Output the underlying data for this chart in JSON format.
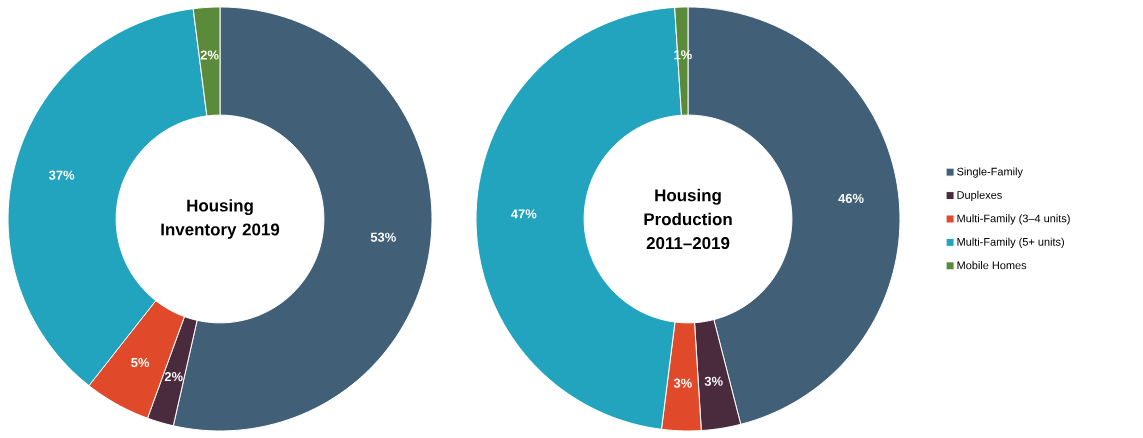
{
  "chart_data": [
    {
      "type": "donut",
      "title": "Housing Inventory 2019",
      "categories": [
        null,
        null,
        null,
        null,
        null
      ],
      "values": [
        53,
        2,
        5,
        37,
        2
      ],
      "colors": [
        "#415f76",
        "#4a2a3d",
        "#e04a2a",
        "#22a4bf",
        "#5b8a3a"
      ],
      "value_labels": [
        "53%",
        "2%",
        "5%",
        "37%",
        "2%"
      ],
      "legend": false
    },
    {
      "type": "donut",
      "title": "Housing Production 2011–2019",
      "categories": [
        "Single-Family",
        "Duplexes",
        "Multi-Family (3–4 units)",
        "Multi-Family (5+ units)",
        "Mobile Homes"
      ],
      "values": [
        46,
        3,
        3,
        47,
        1
      ],
      "colors": [
        "#415f76",
        "#4a2a3d",
        "#e04a2a",
        "#22a4bf",
        "#5b8a3a"
      ],
      "value_labels": [
        "46%",
        "3%",
        "3%",
        "47%",
        "1%"
      ],
      "legend": "right"
    }
  ]
}
